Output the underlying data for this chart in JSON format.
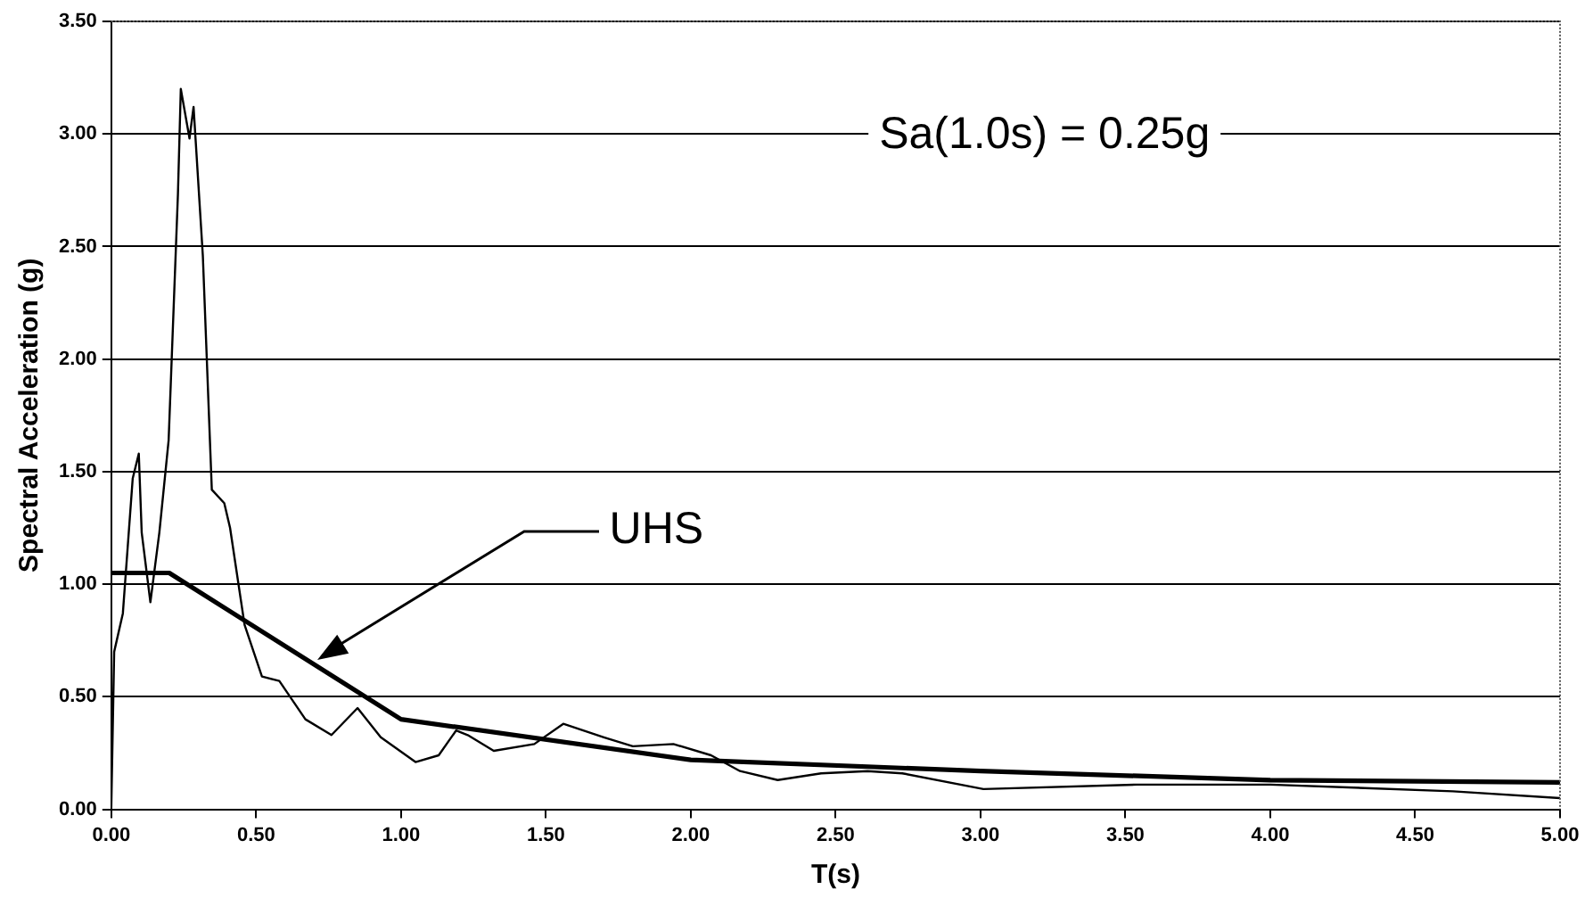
{
  "chart_data": {
    "type": "line",
    "xlabel": "T(s)",
    "ylabel": "Spectral Acceleration (g)",
    "xlim": [
      0,
      5
    ],
    "ylim": [
      0,
      3.5
    ],
    "xticks": [
      {
        "value": 0,
        "label": "0.00"
      },
      {
        "value": 0.5,
        "label": "0.50"
      },
      {
        "value": 1,
        "label": "1.00"
      },
      {
        "value": 1.5,
        "label": "1.50"
      },
      {
        "value": 2,
        "label": "2.00"
      },
      {
        "value": 2.5,
        "label": "2.50"
      },
      {
        "value": 3,
        "label": "3.00"
      },
      {
        "value": 3.5,
        "label": "3.50"
      },
      {
        "value": 4,
        "label": "4.00"
      },
      {
        "value": 4.5,
        "label": "4.50"
      },
      {
        "value": 5,
        "label": "5.00"
      }
    ],
    "yticks": [
      {
        "value": 0,
        "label": "0.00"
      },
      {
        "value": 0.5,
        "label": "0.50"
      },
      {
        "value": 1,
        "label": "1.00"
      },
      {
        "value": 1.5,
        "label": "1.50"
      },
      {
        "value": 2,
        "label": "2.00"
      },
      {
        "value": 2.5,
        "label": "2.50"
      },
      {
        "value": 3,
        "label": "3.00"
      },
      {
        "value": 3.5,
        "label": "3.50"
      }
    ],
    "grid": "y",
    "legend": false,
    "marker": "none",
    "series": [
      {
        "color": "#000000",
        "x": [
          0,
          0.01,
          0.04,
          0.074,
          0.095,
          0.105,
          0.135,
          0.166,
          0.198,
          0.23,
          0.24,
          0.27,
          0.284,
          0.316,
          0.347,
          0.39,
          0.41,
          0.46,
          0.52,
          0.58,
          0.67,
          0.76,
          0.85,
          0.93,
          1.05,
          1.13,
          1.19,
          1.23,
          1.32,
          1.46,
          1.56,
          1.7,
          1.8,
          1.94,
          2.07,
          2.17,
          2.3,
          2.45,
          2.61,
          2.73,
          3.01,
          3.54,
          4.0,
          4.63,
          5.0
        ],
        "values": [
          0,
          0.7,
          0.87,
          1.47,
          1.58,
          1.23,
          0.92,
          1.23,
          1.64,
          2.73,
          3.2,
          2.98,
          3.12,
          2.46,
          1.42,
          1.36,
          1.25,
          0.82,
          0.59,
          0.57,
          0.4,
          0.33,
          0.45,
          0.32,
          0.21,
          0.24,
          0.35,
          0.33,
          0.26,
          0.29,
          0.38,
          0.32,
          0.28,
          0.29,
          0.24,
          0.17,
          0.13,
          0.16,
          0.17,
          0.16,
          0.09,
          0.11,
          0.11,
          0.08,
          0.05
        ]
      },
      {
        "color": "#000000",
        "x": [
          0,
          0.2,
          1.0,
          2.0,
          3.0,
          4.0,
          5.0
        ],
        "values": [
          1.05,
          1.05,
          0.4,
          0.22,
          0.17,
          0.13,
          0.12
        ]
      }
    ],
    "annotations": [
      "Sa(1.0s) = 0.25g",
      "UHS"
    ]
  }
}
